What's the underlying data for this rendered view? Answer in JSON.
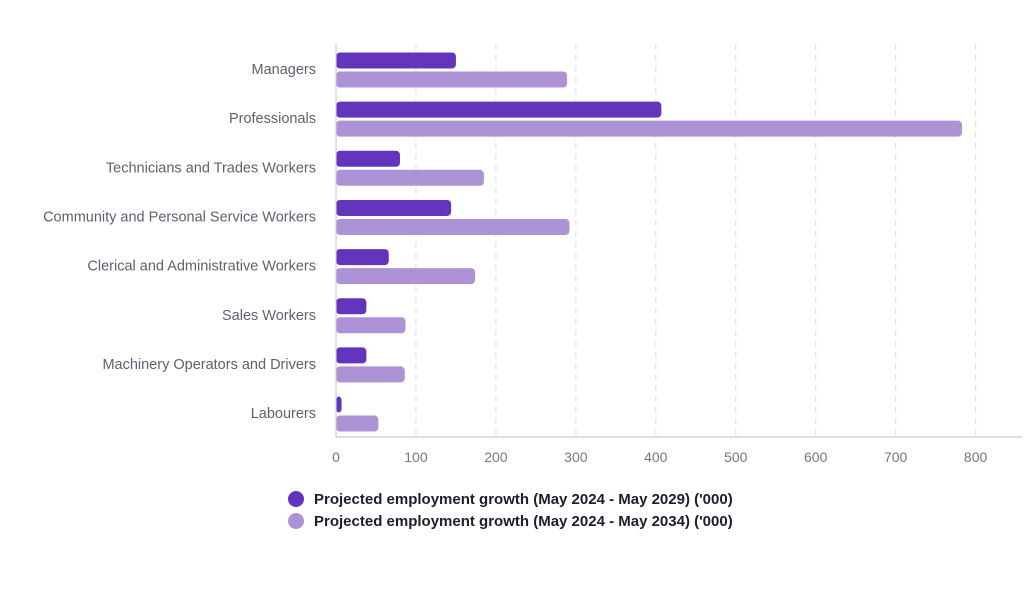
{
  "chart_data": {
    "type": "bar",
    "orientation": "horizontal",
    "title": "",
    "xlabel": "",
    "ylabel": "",
    "categories": [
      "Managers",
      "Professionals",
      "Technicians and Trades Workers",
      "Community and Personal Service Workers",
      "Clerical and Administrative Workers",
      "Sales Workers",
      "Machinery Operators and Drivers",
      "Labourers"
    ],
    "series": [
      {
        "name": "Projected employment growth (May 2024 - May 2029) ('000)",
        "color": "#6335bd",
        "values": [
          150,
          407,
          80,
          144,
          66,
          38,
          38,
          7
        ]
      },
      {
        "name": "Projected employment growth (May 2024 - May 2034) ('000)",
        "color": "#ad93d6",
        "values": [
          289,
          783,
          185,
          292,
          174,
          87,
          86,
          53
        ]
      }
    ],
    "xlim": [
      0,
      860
    ],
    "x_ticks": [
      "0",
      "100",
      "200",
      "300",
      "400",
      "500",
      "600",
      "700",
      "800"
    ],
    "x_tick_values": [
      0,
      100,
      200,
      300,
      400,
      500,
      600,
      700,
      800
    ],
    "grid": true,
    "legend_position": "bottom"
  }
}
